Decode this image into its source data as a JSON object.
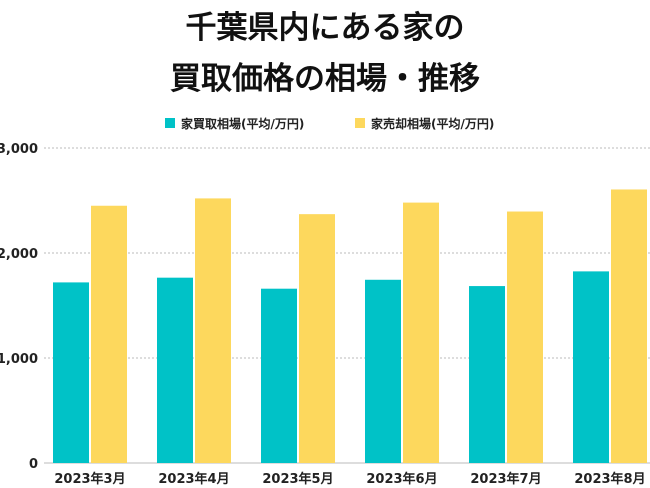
{
  "title_lines": [
    "千葉県内にある家の",
    "買取価格の相場・推移"
  ],
  "chart_data": {
    "type": "bar",
    "categories": [
      "2023年3月",
      "2023年4月",
      "2023年5月",
      "2023年6月",
      "2023年7月",
      "2023年8月"
    ],
    "series": [
      {
        "name": "家買取相場(平均/万円)",
        "color": "#00c2c7",
        "values": [
          1720,
          1765,
          1660,
          1745,
          1685,
          1825
        ]
      },
      {
        "name": "家売却相場(平均/万円)",
        "color": "#fdd85d",
        "values": [
          2450,
          2520,
          2370,
          2480,
          2395,
          2605
        ]
      }
    ],
    "ylim": [
      0,
      3000
    ],
    "yticks": [
      0,
      1000,
      2000,
      3000
    ],
    "ytick_labels": [
      "0",
      "1,000",
      "2,000",
      "3,000"
    ],
    "grid": true,
    "gridline_color": "#bbbbbb",
    "legend_position": "top-center"
  }
}
